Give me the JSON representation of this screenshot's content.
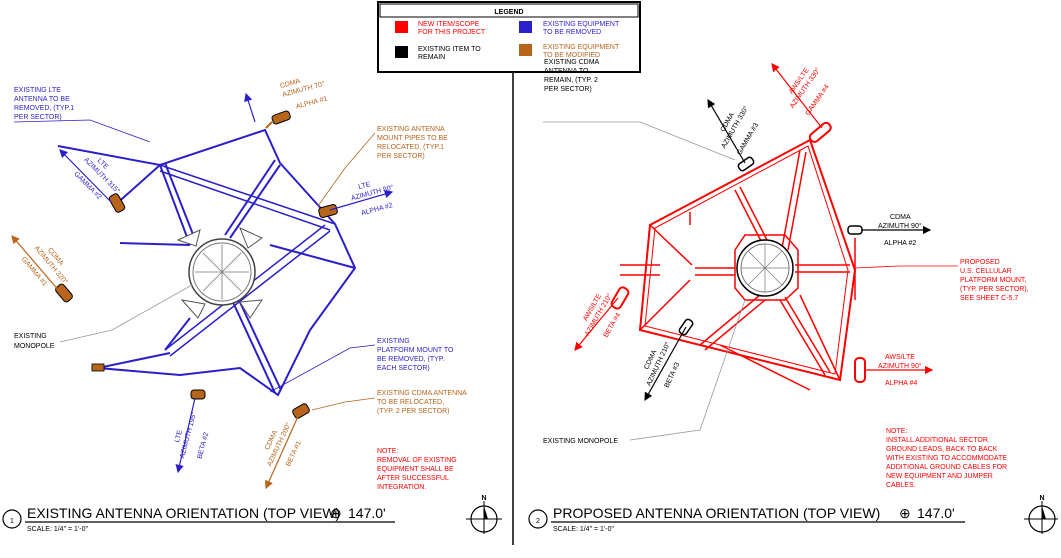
{
  "legend": {
    "title": "LEGEND",
    "new_item": [
      "NEW ITEM/SCOPE",
      "FOR THIS PROJECT"
    ],
    "existing_remain": [
      "EXISTING ITEM TO",
      "REMAIN"
    ],
    "existing_removed": [
      "EXISTING EQUIPMENT",
      "TO BE REMOVED"
    ],
    "existing_modified": [
      "EXISTING EQUIPMENT",
      "TO BE MODIFIED"
    ]
  },
  "colors": {
    "new": "#ff0000",
    "remain": "#000000",
    "removed": "#2b1fc9",
    "modified": "#b8651c",
    "gray": "#777777"
  },
  "left": {
    "view_number": "1",
    "title": "EXISTING ANTENNA ORIENTATION (TOP VIEW)",
    "elevation": "147.0'",
    "scale": "SCALE: 1/4\" = 1'-0\"",
    "lte_note": [
      "EXISTING LTE",
      "ANTENNA TO BE",
      "REMOVED, (TYP.1",
      "PER SECTOR)"
    ],
    "pipes_note": [
      "EXISTING ANTENNA",
      "MOUNT PIPES TO BE",
      "RELOCATED, (TYP.1",
      "PER SECTOR)"
    ],
    "monopole_note": [
      "EXISTING",
      "MONOPOLE"
    ],
    "platform_note": [
      "EXISTING",
      "PLATFORM MOUNT TO",
      "BE REMOVED, (TYP.",
      "EACH SECTOR)"
    ],
    "cdma_note": [
      "EXISTING CDMA ANTENNA",
      "TO BE RELOCATED,",
      "(TYP. 2 PER SECTOR)"
    ],
    "removal_note": [
      "NOTE:",
      "REMOVAL OF EXISTING",
      "EQUIPMENT SHALL BE",
      "AFTER SUCCESSFUL",
      "INTEGRATION."
    ],
    "cdma_alpha": [
      "CDMA",
      "AZIMUTH 70°",
      "ALPHA #1"
    ],
    "lte_alpha": [
      "LTE",
      "AZIMUTH 80°",
      "ALPHA #2"
    ],
    "lte_gamma": [
      "LTE",
      "AZIMUTH 315°",
      "GAMMA #2"
    ],
    "cdma_gamma": [
      "CDMA",
      "AZIMUTH 320°",
      "GAMMA #1"
    ],
    "lte_beta": [
      "LTE",
      "AZIMUTH 195°",
      "BETA #2"
    ],
    "cdma_beta": [
      "CDMA",
      "AZIMUTH 200°",
      "BETA #1"
    ]
  },
  "right": {
    "view_number": "2",
    "title": "PROPOSED ANTENNA ORIENTATION (TOP VIEW)",
    "elevation": "147.0'",
    "scale": "SCALE: 1/4\" = 1'-0\"",
    "cdma_remain_note": [
      "EXISTING CDMA",
      "ANTENNA TO",
      "REMAIN, (TYP. 2",
      "PER SECTOR)"
    ],
    "platform_note": [
      "PROPOSED",
      "U.S. CELLULAR",
      "PLATFORM MOUNT,",
      "(TYP. PER SECTOR),",
      "SEE SHEET C-5.7"
    ],
    "monopole_note": "EXISTING MONOPOLE",
    "ground_note": [
      "NOTE:",
      "INSTALL ADDITIONAL SECTOR",
      "GROUND LEADS, BACK TO BACK",
      "WITH EXISTING TO ACCOMMODATE",
      "ADDITIONAL GROUND CABLES FOR",
      "NEW EQUIPMENT AND JUMPER",
      "CABLES."
    ],
    "cdma_gamma": [
      "CDMA",
      "AZIMUTH 330°",
      "GAMMA #3"
    ],
    "aws_gamma": [
      "AWS/LTE",
      "AZIMUTH 330°",
      "GAMMA #4"
    ],
    "cdma_alpha": [
      "CDMA",
      "AZIMUTH 90°",
      "ALPHA #2"
    ],
    "aws_alpha": [
      "AWS/LTE",
      "AZIMUTH 90°",
      "ALPHA #4"
    ],
    "aws_beta": [
      "AWS/LTE",
      "AZIMUTH 210°",
      "BETA #4"
    ],
    "cdma_beta": [
      "CDMA",
      "AZIMUTH 210°",
      "BETA #3"
    ]
  },
  "north_label": "N"
}
